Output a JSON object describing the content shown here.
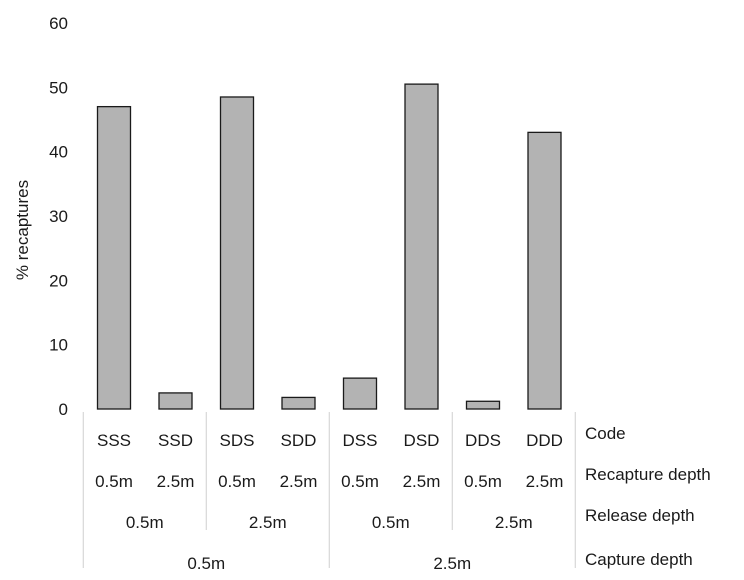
{
  "chart_data": {
    "type": "bar",
    "title": "",
    "ylabel": "% recaptures",
    "ylim": [
      0,
      60
    ],
    "yticks": [
      0,
      10,
      20,
      30,
      40,
      50,
      60
    ],
    "grid": false,
    "bar_color": "#b3b3b3",
    "categories": [
      "SSS",
      "SSD",
      "SDS",
      "SDD",
      "DSS",
      "DSD",
      "DDS",
      "DDD"
    ],
    "values": [
      47,
      2.5,
      48.5,
      1.8,
      4.8,
      50.5,
      1.2,
      43
    ],
    "recapture_depth": [
      "0.5m",
      "2.5m",
      "0.5m",
      "2.5m",
      "0.5m",
      "2.5m",
      "0.5m",
      "2.5m"
    ],
    "release_depth": [
      "0.5m",
      "2.5m",
      "0.5m",
      "2.5m"
    ],
    "capture_depth": [
      "0.5m",
      "2.5m"
    ],
    "row_labels": {
      "code": "Code",
      "recapture": "Recapture depth",
      "release": "Release depth",
      "capture": "Capture depth"
    }
  }
}
